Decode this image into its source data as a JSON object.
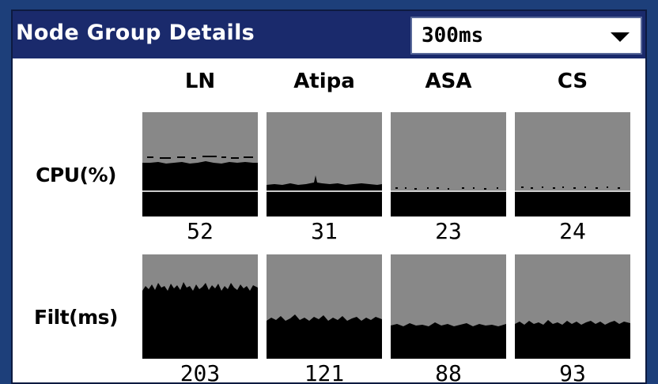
{
  "panel": {
    "title": "Node Group Details",
    "interval": {
      "selected": "300ms"
    }
  },
  "columns": [
    "LN",
    "Atipa",
    "ASA",
    "CS"
  ],
  "rows": [
    {
      "label": "CPU(%)",
      "values": [
        "52",
        "31",
        "23",
        "24"
      ]
    },
    {
      "label": "Filt(ms)",
      "values": [
        "203",
        "121",
        "88",
        "93"
      ]
    }
  ],
  "chart_data": {
    "type": "area",
    "title": "",
    "series": [
      {
        "name": "CPU(%)",
        "categories": [
          "LN",
          "Atipa",
          "ASA",
          "CS"
        ],
        "values": [
          52,
          31,
          23,
          24
        ]
      },
      {
        "name": "Filt(ms)",
        "categories": [
          "LN",
          "Atipa",
          "ASA",
          "CS"
        ],
        "values": [
          203,
          121,
          88,
          93
        ]
      }
    ]
  },
  "colors": {
    "background": "#1d3f7a",
    "titlebar": "#1a2a6c",
    "cell": "#888888",
    "fill": "#000000",
    "reference_line": "#cccccc"
  }
}
